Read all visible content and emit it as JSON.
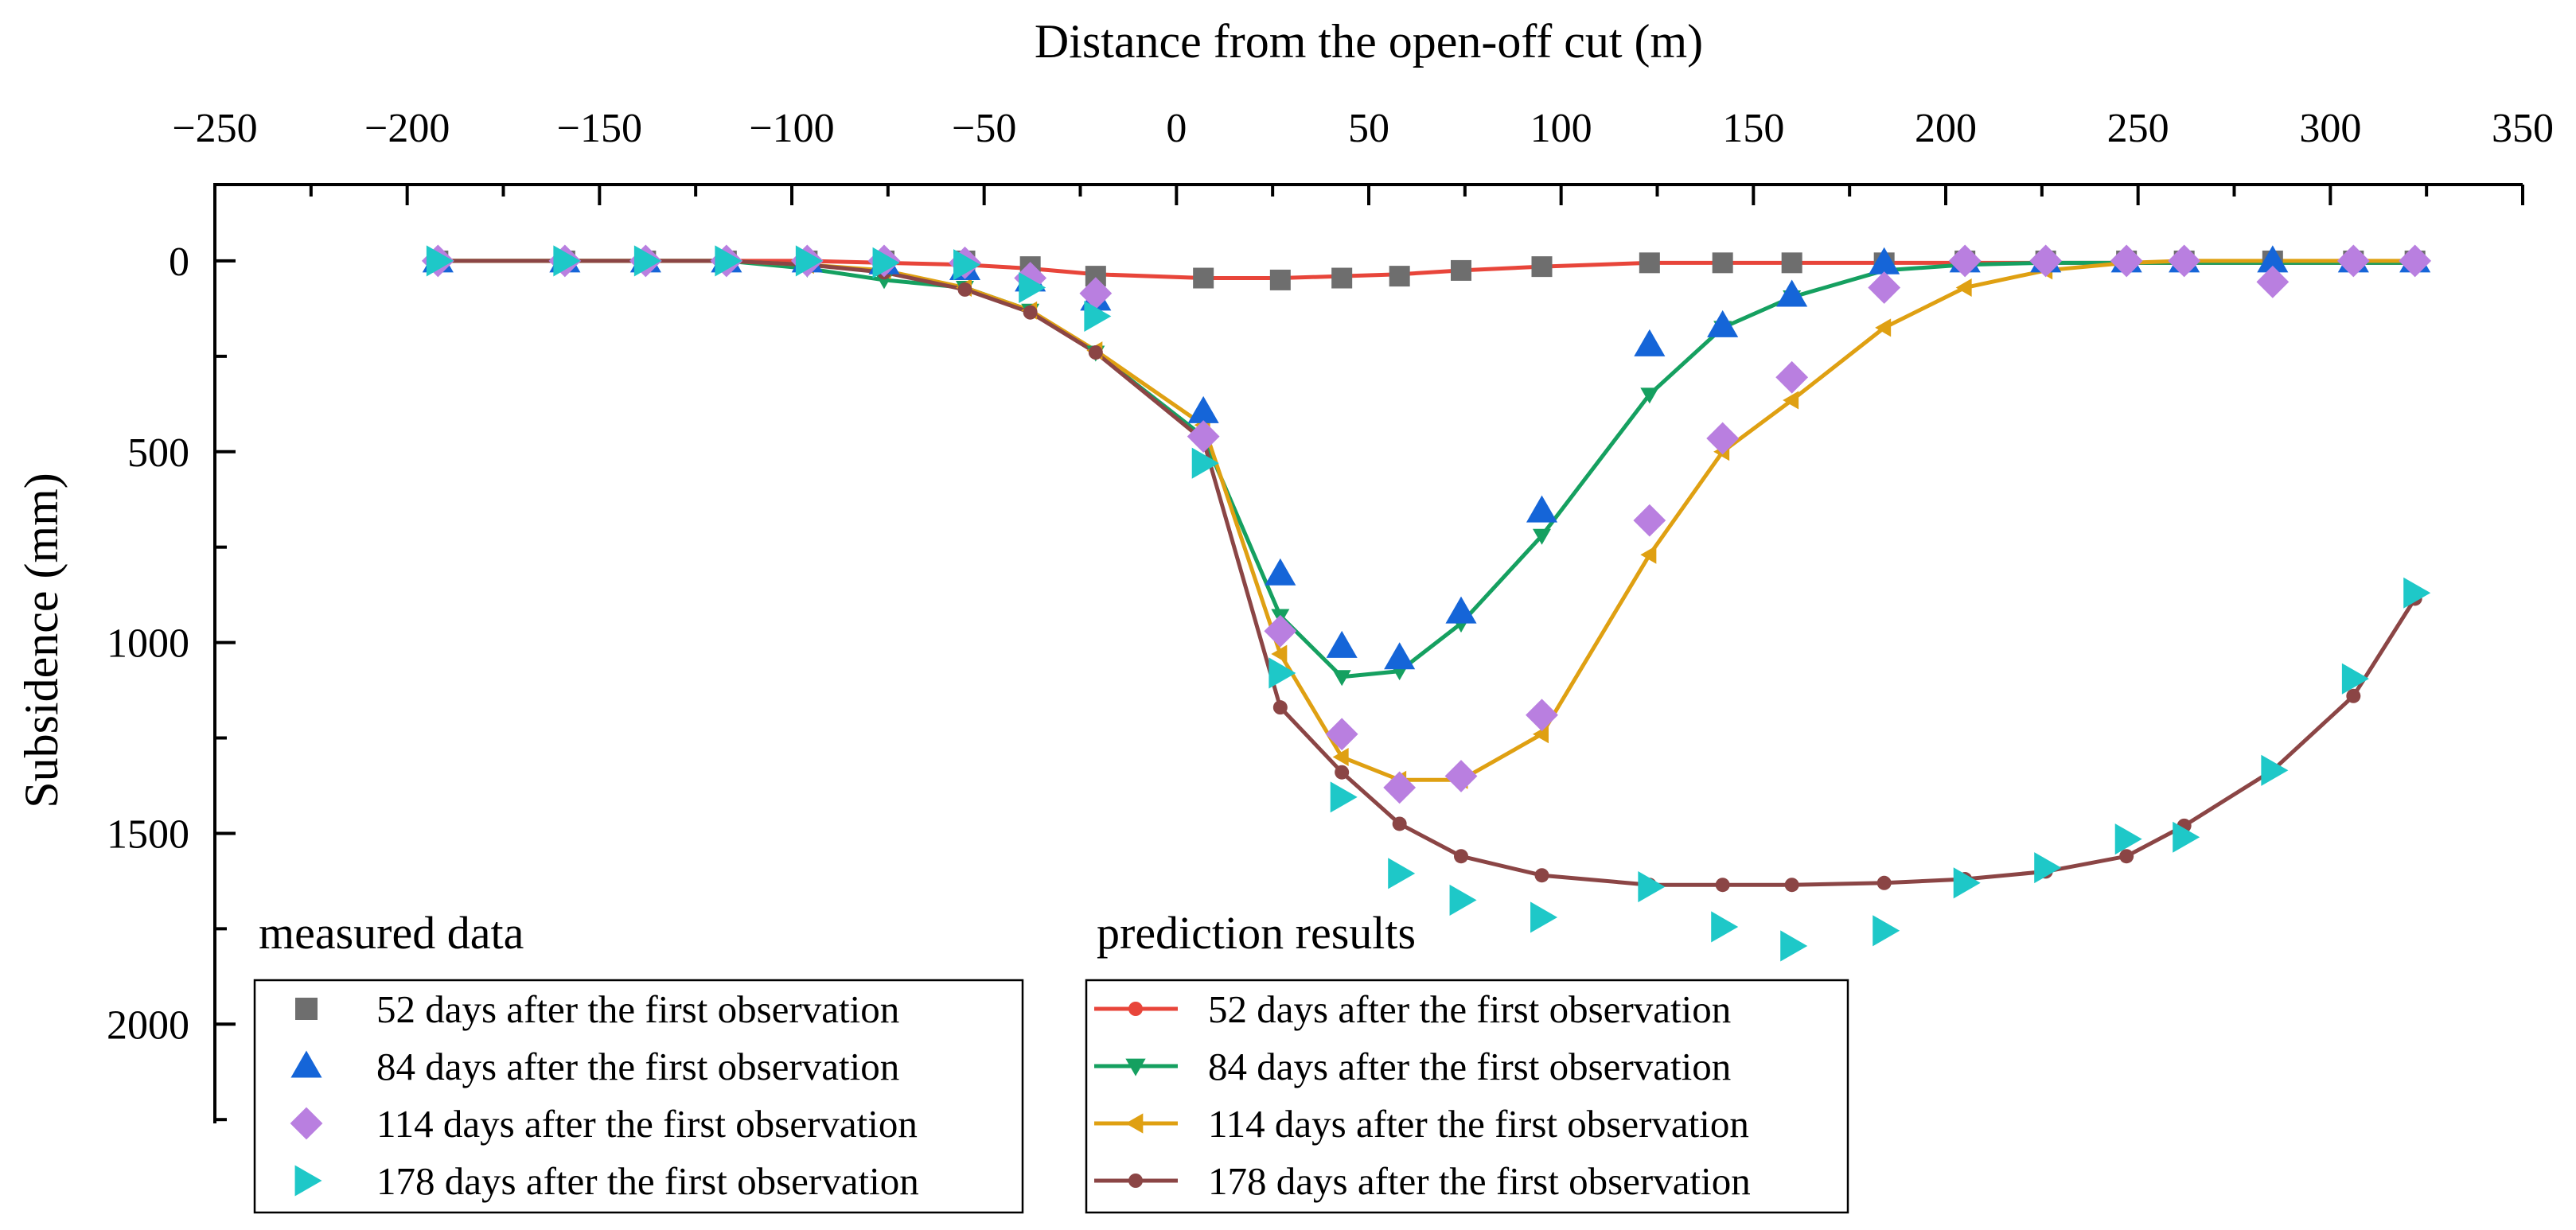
{
  "chart_data": {
    "type": "scatter",
    "xlabel": "Distance from the open-off cut (m)",
    "ylabel": "Subsidence (mm)",
    "xlim": [
      -250,
      350
    ],
    "ylim": [
      -200,
      2260
    ],
    "y_inverted": true,
    "x_axis_position": "top",
    "x_ticks": [
      -250,
      -200,
      -150,
      -100,
      -50,
      0,
      50,
      100,
      150,
      200,
      250,
      300,
      350
    ],
    "x_tick_labels": [
      "−250",
      "−200",
      "−150",
      "−100",
      "−50",
      "0",
      "50",
      "100",
      "150",
      "200",
      "250",
      "300",
      "350"
    ],
    "y_ticks": [
      0,
      500,
      1000,
      1500,
      2000
    ],
    "y_tick_labels": [
      "0",
      "500",
      "1000",
      "1500",
      "2000"
    ],
    "legend_measured_title": "measured data",
    "legend_prediction_title": "prediction results",
    "x_measured": [
      -192,
      -159,
      -138,
      -117,
      -96,
      -76,
      -55,
      -38,
      -21,
      7,
      27,
      43,
      58,
      74,
      95,
      123,
      142,
      160,
      184,
      205,
      226,
      247,
      262,
      285,
      306,
      322
    ],
    "x_predicted": [
      -192,
      -159,
      -138,
      -117,
      -96,
      -76,
      -55,
      -38,
      -21,
      7,
      27,
      43,
      58,
      74,
      95,
      123,
      142,
      160,
      184,
      205,
      226,
      247,
      262,
      285,
      306,
      322
    ],
    "measured_series": [
      {
        "name": "52 days after the first observation",
        "color": "#6e6e6e",
        "marker": "square",
        "values": [
          0,
          0,
          0,
          0,
          0,
          0,
          0,
          15,
          40,
          45,
          50,
          45,
          40,
          25,
          15,
          5,
          5,
          5,
          5,
          0,
          0,
          0,
          0,
          0,
          0,
          0
        ]
      },
      {
        "name": "84 days after the first observation",
        "color": "#1565d8",
        "marker": "triangle-up",
        "values": [
          0,
          0,
          0,
          0,
          0,
          5,
          20,
          50,
          100,
          395,
          820,
          1010,
          1040,
          920,
          655,
          220,
          170,
          90,
          5,
          0,
          0,
          0,
          0,
          0,
          0,
          0
        ]
      },
      {
        "name": "114 days after the first observation",
        "color": "#b97fe0",
        "marker": "diamond",
        "values": [
          0,
          0,
          0,
          0,
          0,
          0,
          5,
          45,
          85,
          460,
          970,
          1240,
          1380,
          1350,
          1190,
          680,
          465,
          305,
          70,
          0,
          0,
          0,
          0,
          55,
          0,
          0
        ]
      },
      {
        "name": "178 days after the first observation",
        "color": "#1ec8c8",
        "marker": "triangle-right",
        "values": [
          0,
          0,
          0,
          0,
          0,
          5,
          10,
          70,
          145,
          530,
          1080,
          1405,
          1605,
          1675,
          1720,
          1640,
          1745,
          1795,
          1755,
          1630,
          1590,
          1515,
          1510,
          1335,
          1095,
          870
        ]
      }
    ],
    "prediction_series": [
      {
        "name": "52 days after the first observation",
        "color": "#e8453a",
        "marker": "circle",
        "values": [
          0,
          0,
          0,
          0,
          0,
          5,
          10,
          20,
          35,
          45,
          45,
          40,
          35,
          25,
          15,
          5,
          5,
          5,
          5,
          5,
          5,
          5,
          5,
          5,
          5,
          5
        ]
      },
      {
        "name": "84 days after the first observation",
        "color": "#15a060",
        "marker": "triangle-down",
        "values": [
          0,
          0,
          0,
          0,
          20,
          50,
          70,
          130,
          240,
          460,
          930,
          1090,
          1075,
          950,
          720,
          350,
          175,
          95,
          25,
          10,
          5,
          5,
          5,
          5,
          5,
          5
        ]
      },
      {
        "name": "114 days after the first observation",
        "color": "#dfa012",
        "marker": "triangle-left",
        "values": [
          0,
          0,
          0,
          0,
          10,
          25,
          70,
          130,
          235,
          430,
          1030,
          1300,
          1360,
          1360,
          1240,
          770,
          500,
          365,
          175,
          70,
          25,
          5,
          0,
          0,
          0,
          0
        ]
      },
      {
        "name": "178 days after the first observation",
        "color": "#8b4545",
        "marker": "circle",
        "values": [
          0,
          0,
          0,
          0,
          10,
          30,
          75,
          135,
          240,
          470,
          1170,
          1340,
          1475,
          1560,
          1610,
          1635,
          1635,
          1635,
          1630,
          1620,
          1600,
          1560,
          1480,
          1335,
          1140,
          885
        ]
      }
    ]
  }
}
